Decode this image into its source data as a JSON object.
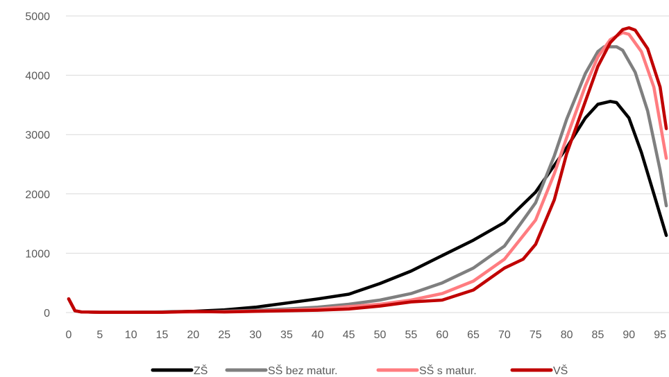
{
  "chart_data": {
    "type": "line",
    "title": "",
    "xlabel": "",
    "ylabel": "",
    "ylim": [
      0,
      5000
    ],
    "xlim": [
      0,
      96
    ],
    "grid": "horizontal",
    "legend_position": "bottom",
    "x_ticks": [
      0,
      5,
      10,
      15,
      20,
      25,
      30,
      35,
      40,
      45,
      50,
      55,
      60,
      65,
      70,
      75,
      80,
      85,
      90,
      95
    ],
    "y_ticks": [
      0,
      1000,
      2000,
      3000,
      4000,
      5000
    ],
    "series": [
      {
        "name": "ZŠ",
        "color": "#000000",
        "points": [
          [
            0,
            230
          ],
          [
            1,
            30
          ],
          [
            2,
            10
          ],
          [
            5,
            5
          ],
          [
            10,
            5
          ],
          [
            15,
            10
          ],
          [
            20,
            20
          ],
          [
            25,
            45
          ],
          [
            30,
            90
          ],
          [
            35,
            160
          ],
          [
            40,
            230
          ],
          [
            45,
            310
          ],
          [
            50,
            490
          ],
          [
            55,
            700
          ],
          [
            60,
            960
          ],
          [
            65,
            1220
          ],
          [
            70,
            1520
          ],
          [
            75,
            2030
          ],
          [
            80,
            2780
          ],
          [
            83,
            3280
          ],
          [
            85,
            3510
          ],
          [
            87,
            3560
          ],
          [
            88,
            3540
          ],
          [
            90,
            3280
          ],
          [
            92,
            2700
          ],
          [
            94,
            2000
          ],
          [
            96,
            1300
          ]
        ]
      },
      {
        "name": "SŠ bez matur.",
        "color": "#7f7f7f",
        "points": [
          [
            0,
            230
          ],
          [
            1,
            30
          ],
          [
            2,
            10
          ],
          [
            5,
            5
          ],
          [
            10,
            5
          ],
          [
            15,
            8
          ],
          [
            20,
            10
          ],
          [
            25,
            20
          ],
          [
            30,
            40
          ],
          [
            35,
            60
          ],
          [
            40,
            90
          ],
          [
            45,
            140
          ],
          [
            50,
            210
          ],
          [
            55,
            320
          ],
          [
            60,
            500
          ],
          [
            65,
            750
          ],
          [
            70,
            1120
          ],
          [
            75,
            1850
          ],
          [
            78,
            2640
          ],
          [
            80,
            3260
          ],
          [
            83,
            4030
          ],
          [
            85,
            4400
          ],
          [
            86,
            4480
          ],
          [
            88,
            4480
          ],
          [
            89,
            4420
          ],
          [
            91,
            4050
          ],
          [
            93,
            3400
          ],
          [
            95,
            2400
          ],
          [
            96,
            1800
          ]
        ]
      },
      {
        "name": "SŠ s matur.",
        "color": "#ff7c80",
        "points": [
          [
            0,
            230
          ],
          [
            1,
            30
          ],
          [
            2,
            10
          ],
          [
            5,
            5
          ],
          [
            10,
            5
          ],
          [
            15,
            5
          ],
          [
            20,
            10
          ],
          [
            25,
            15
          ],
          [
            30,
            25
          ],
          [
            35,
            40
          ],
          [
            40,
            60
          ],
          [
            45,
            100
          ],
          [
            50,
            140
          ],
          [
            55,
            210
          ],
          [
            60,
            320
          ],
          [
            65,
            530
          ],
          [
            70,
            900
          ],
          [
            75,
            1560
          ],
          [
            78,
            2340
          ],
          [
            80,
            2950
          ],
          [
            83,
            3820
          ],
          [
            85,
            4310
          ],
          [
            87,
            4600
          ],
          [
            89,
            4720
          ],
          [
            90,
            4690
          ],
          [
            92,
            4400
          ],
          [
            94,
            3800
          ],
          [
            96,
            2600
          ]
        ]
      },
      {
        "name": "VŠ",
        "color": "#c00000",
        "points": [
          [
            0,
            230
          ],
          [
            1,
            30
          ],
          [
            2,
            10
          ],
          [
            5,
            5
          ],
          [
            10,
            5
          ],
          [
            15,
            5
          ],
          [
            20,
            20
          ],
          [
            25,
            10
          ],
          [
            30,
            20
          ],
          [
            35,
            30
          ],
          [
            40,
            40
          ],
          [
            45,
            60
          ],
          [
            50,
            110
          ],
          [
            55,
            180
          ],
          [
            60,
            210
          ],
          [
            65,
            380
          ],
          [
            70,
            750
          ],
          [
            73,
            900
          ],
          [
            75,
            1150
          ],
          [
            78,
            1900
          ],
          [
            80,
            2680
          ],
          [
            83,
            3560
          ],
          [
            85,
            4150
          ],
          [
            87,
            4550
          ],
          [
            89,
            4770
          ],
          [
            90,
            4800
          ],
          [
            91,
            4760
          ],
          [
            93,
            4450
          ],
          [
            95,
            3800
          ],
          [
            96,
            3100
          ]
        ]
      }
    ]
  }
}
